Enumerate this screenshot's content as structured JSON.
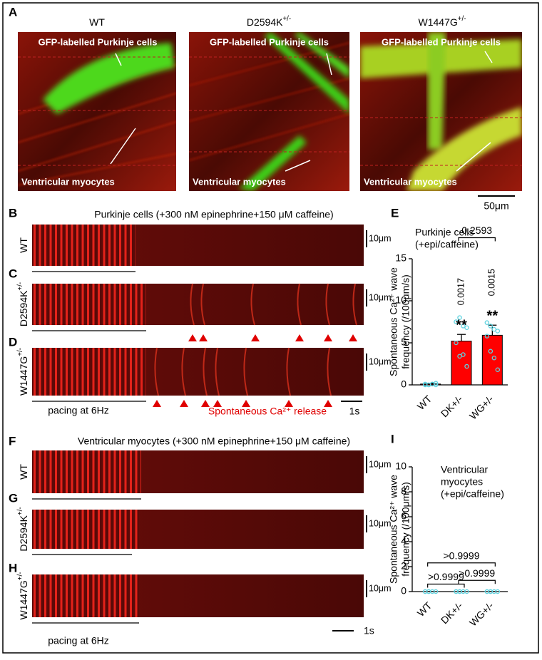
{
  "figure": {
    "panel_labels": [
      "A",
      "B",
      "C",
      "D",
      "E",
      "F",
      "G",
      "H",
      "I"
    ],
    "genotypes": [
      {
        "text": "WT"
      },
      {
        "text": "D2594K",
        "sup": "+/-"
      },
      {
        "text": "W1447G",
        "sup": "+/-"
      }
    ],
    "image_labels": {
      "top": "GFP-labelled Purkinje cells",
      "bottom": "Ventricular myocytes"
    },
    "image_scale": "50μm",
    "purkinje_title": "Purkinje cells (+300 nM epinephrine+150 μM caffeine)",
    "ventricular_title": "Ventricular myocytes (+300 nM epinephrine+150 μM caffeine)",
    "space_scale": "10μm",
    "time_scale": "1s",
    "pacing": "pacing at 6Hz",
    "release": "Spontaneous Ca²⁺ release"
  },
  "chart_data": [
    {
      "type": "bar",
      "title": [
        "Purkinje cells",
        "(+epi/caffeine)"
      ],
      "ylabel": [
        "Spontaneous Ca²⁺ wave",
        "frequency (/100μm/s)"
      ],
      "categories": [
        "WT",
        "DK+/-",
        "WG+/-"
      ],
      "values": [
        0.1,
        5.2,
        5.9
      ],
      "errors": [
        0.1,
        0.8,
        1.2
      ],
      "points": [
        [
          0,
          0,
          0.1,
          0.2,
          0.1,
          0,
          0.1,
          0
        ],
        [
          7.5,
          8.0,
          7.0,
          6.8,
          5.0,
          3.4,
          3.6,
          2.2
        ],
        [
          7.4,
          7.0,
          6.6,
          6.4,
          5.8,
          4.0,
          3.2,
          1.8
        ]
      ],
      "color": "#ff0000",
      "point_color": "#5fd3e0",
      "ylim": [
        0,
        15
      ],
      "yticks": [
        0,
        5,
        10,
        15
      ],
      "annotations": [
        {
          "text": "0.0017",
          "category": 1
        },
        {
          "text": "0.0015",
          "category": 2
        },
        {
          "text": "**",
          "category": 1
        },
        {
          "text": "**",
          "category": 2
        }
      ],
      "brackets": [
        {
          "text": "0.2593",
          "from": 1,
          "to": 2,
          "level": 17.5
        }
      ]
    },
    {
      "type": "bar",
      "title": [
        "Ventricular",
        "myocytes",
        "(+epi/caffeine)"
      ],
      "ylabel": [
        "Spontaneous Ca²⁺ wave",
        "frequency (/100μm/s)"
      ],
      "categories": [
        "WT",
        "DK+/-",
        "WG+/-"
      ],
      "values": [
        0,
        0,
        0
      ],
      "errors": [
        0,
        0,
        0
      ],
      "points": [
        [
          0,
          0,
          0,
          0,
          0,
          0
        ],
        [
          0,
          0,
          0,
          0,
          0,
          0
        ],
        [
          0,
          0,
          0,
          0,
          0,
          0
        ]
      ],
      "color": "#ff0000",
      "point_color": "#5fd3e0",
      "ylim": [
        0,
        10
      ],
      "yticks": [
        0,
        2,
        4,
        6,
        8,
        10
      ],
      "annotations": [],
      "brackets": [
        {
          "text": ">0.9999",
          "from": 0,
          "to": 2,
          "level": 2.3
        },
        {
          "text": ">0.9999",
          "from": 0,
          "to": 1,
          "level": 0.6
        },
        {
          "text": ">0.9999",
          "from": 1,
          "to": 2,
          "level": 0.9
        }
      ]
    }
  ]
}
